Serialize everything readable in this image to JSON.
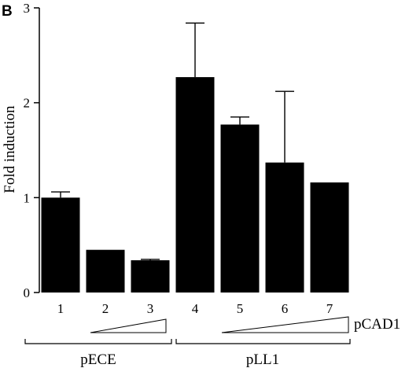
{
  "panel_label": "B",
  "chart_data": {
    "type": "bar",
    "ylabel": "Fold induction",
    "xlabel": "",
    "ylim": [
      0,
      3
    ],
    "yticks": [
      0,
      1,
      2,
      3
    ],
    "categories": [
      "1",
      "2",
      "3",
      "4",
      "5",
      "6",
      "7"
    ],
    "values": [
      1.0,
      0.45,
      0.34,
      2.27,
      1.77,
      1.37,
      1.16
    ],
    "error_upper": [
      1.06,
      null,
      0.35,
      2.84,
      1.85,
      2.12,
      null
    ],
    "grid": false,
    "bar_color": "#000000",
    "groups": [
      {
        "label": "pECE",
        "categories": [
          "1",
          "2",
          "3"
        ]
      },
      {
        "label": "pLL1",
        "categories": [
          "4",
          "5",
          "6",
          "7"
        ]
      }
    ],
    "gradient_label": "pCAD1"
  }
}
